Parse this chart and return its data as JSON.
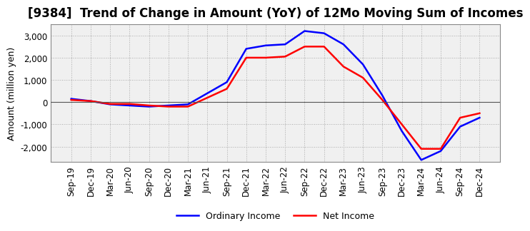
{
  "title": "[9384]  Trend of Change in Amount (YoY) of 12Mo Moving Sum of Incomes",
  "ylabel": "Amount (million yen)",
  "ylim": [
    -2700,
    3500
  ],
  "yticks": [
    -2000,
    -1000,
    0,
    1000,
    2000,
    3000
  ],
  "x_labels": [
    "Sep-19",
    "Dec-19",
    "Mar-20",
    "Jun-20",
    "Sep-20",
    "Dec-20",
    "Mar-21",
    "Jun-21",
    "Sep-21",
    "Dec-21",
    "Mar-22",
    "Jun-22",
    "Sep-22",
    "Dec-22",
    "Mar-23",
    "Jun-23",
    "Sep-23",
    "Dec-23",
    "Mar-24",
    "Jun-24",
    "Sep-24",
    "Dec-24"
  ],
  "ordinary_income": [
    150,
    50,
    -100,
    -150,
    -200,
    -150,
    -100,
    400,
    900,
    2400,
    2550,
    2600,
    3200,
    3100,
    2600,
    1700,
    300,
    -1300,
    -2600,
    -2200,
    -1100,
    -700
  ],
  "net_income": [
    100,
    50,
    -80,
    -80,
    -150,
    -200,
    -200,
    200,
    600,
    2000,
    2000,
    2050,
    2500,
    2500,
    1600,
    1100,
    100,
    -1000,
    -2100,
    -2100,
    -700,
    -500
  ],
  "ordinary_color": "#0000FF",
  "net_color": "#FF0000",
  "line_width": 1.8,
  "background_color": "#ffffff",
  "plot_bg_color": "#f0f0f0",
  "grid_color": "#aaaaaa",
  "title_fontsize": 12,
  "label_fontsize": 9,
  "tick_fontsize": 8.5
}
